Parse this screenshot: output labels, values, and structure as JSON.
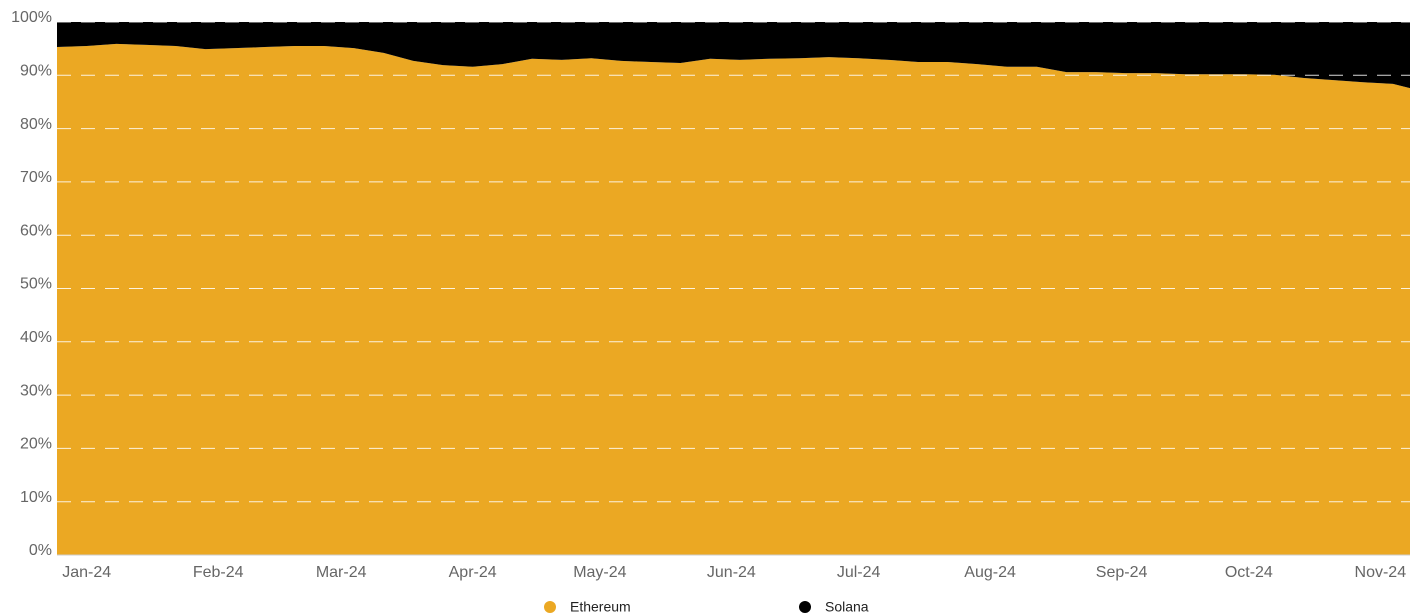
{
  "chart_data": {
    "type": "stacked_area_percent",
    "x": [
      -6,
      1,
      8,
      15,
      22,
      29,
      36,
      43,
      50,
      57,
      64,
      71,
      78,
      85,
      92,
      99,
      106,
      113,
      120,
      127,
      134,
      141,
      148,
      155,
      162,
      169,
      176,
      183,
      190,
      197,
      204,
      211,
      218,
      225,
      232,
      239,
      246,
      253,
      260,
      267,
      274,
      281,
      288,
      295,
      302,
      309,
      313
    ],
    "series": [
      {
        "name": "Ethereum",
        "color": "#eba823",
        "values": [
          95.3,
          95.5,
          95.9,
          95.7,
          95.5,
          94.9,
          95.1,
          95.3,
          95.5,
          95.5,
          95.1,
          94.2,
          92.7,
          91.9,
          91.6,
          92.1,
          93.1,
          92.9,
          93.2,
          92.7,
          92.5,
          92.3,
          93.1,
          92.9,
          93.1,
          93.2,
          93.4,
          93.2,
          92.9,
          92.5,
          92.5,
          92.1,
          91.6,
          91.6,
          90.6,
          90.6,
          90.4,
          90.4,
          90.2,
          90.2,
          90.2,
          90.1,
          89.5,
          89.1,
          88.7,
          88.4,
          87.6
        ]
      },
      {
        "name": "Solana",
        "color": "#000000",
        "values": [
          4.7,
          4.5,
          4.1,
          4.3,
          4.5,
          5.1,
          4.9,
          4.7,
          4.5,
          4.5,
          4.9,
          5.8,
          7.3,
          8.1,
          8.4,
          7.9,
          6.9,
          7.1,
          6.8,
          7.3,
          7.5,
          7.7,
          6.9,
          7.1,
          6.9,
          6.8,
          6.6,
          6.8,
          7.1,
          7.5,
          7.5,
          7.9,
          8.4,
          8.4,
          9.4,
          9.4,
          9.6,
          9.6,
          9.8,
          9.8,
          9.8,
          9.9,
          10.5,
          10.9,
          11.3,
          11.6,
          12.4
        ]
      }
    ],
    "xlim": [
      -6,
      313
    ],
    "xticks": [
      {
        "value": 1,
        "label": "Jan-24"
      },
      {
        "value": 32,
        "label": "Feb-24"
      },
      {
        "value": 61,
        "label": "Mar-24"
      },
      {
        "value": 92,
        "label": "Apr-24"
      },
      {
        "value": 122,
        "label": "May-24"
      },
      {
        "value": 153,
        "label": "Jun-24"
      },
      {
        "value": 183,
        "label": "Jul-24"
      },
      {
        "value": 214,
        "label": "Aug-24"
      },
      {
        "value": 245,
        "label": "Sep-24"
      },
      {
        "value": 275,
        "label": "Oct-24"
      },
      {
        "value": 306,
        "label": "Nov-24"
      }
    ],
    "ylim": [
      0,
      100
    ],
    "yticks": [
      {
        "value": 0,
        "label": "0%"
      },
      {
        "value": 10,
        "label": "10%"
      },
      {
        "value": 20,
        "label": "20%"
      },
      {
        "value": 30,
        "label": "30%"
      },
      {
        "value": 40,
        "label": "40%"
      },
      {
        "value": 50,
        "label": "50%"
      },
      {
        "value": 60,
        "label": "60%"
      },
      {
        "value": 70,
        "label": "70%"
      },
      {
        "value": 80,
        "label": "80%"
      },
      {
        "value": 90,
        "label": "90%"
      },
      {
        "value": 100,
        "label": "100%"
      }
    ],
    "grid": true
  }
}
